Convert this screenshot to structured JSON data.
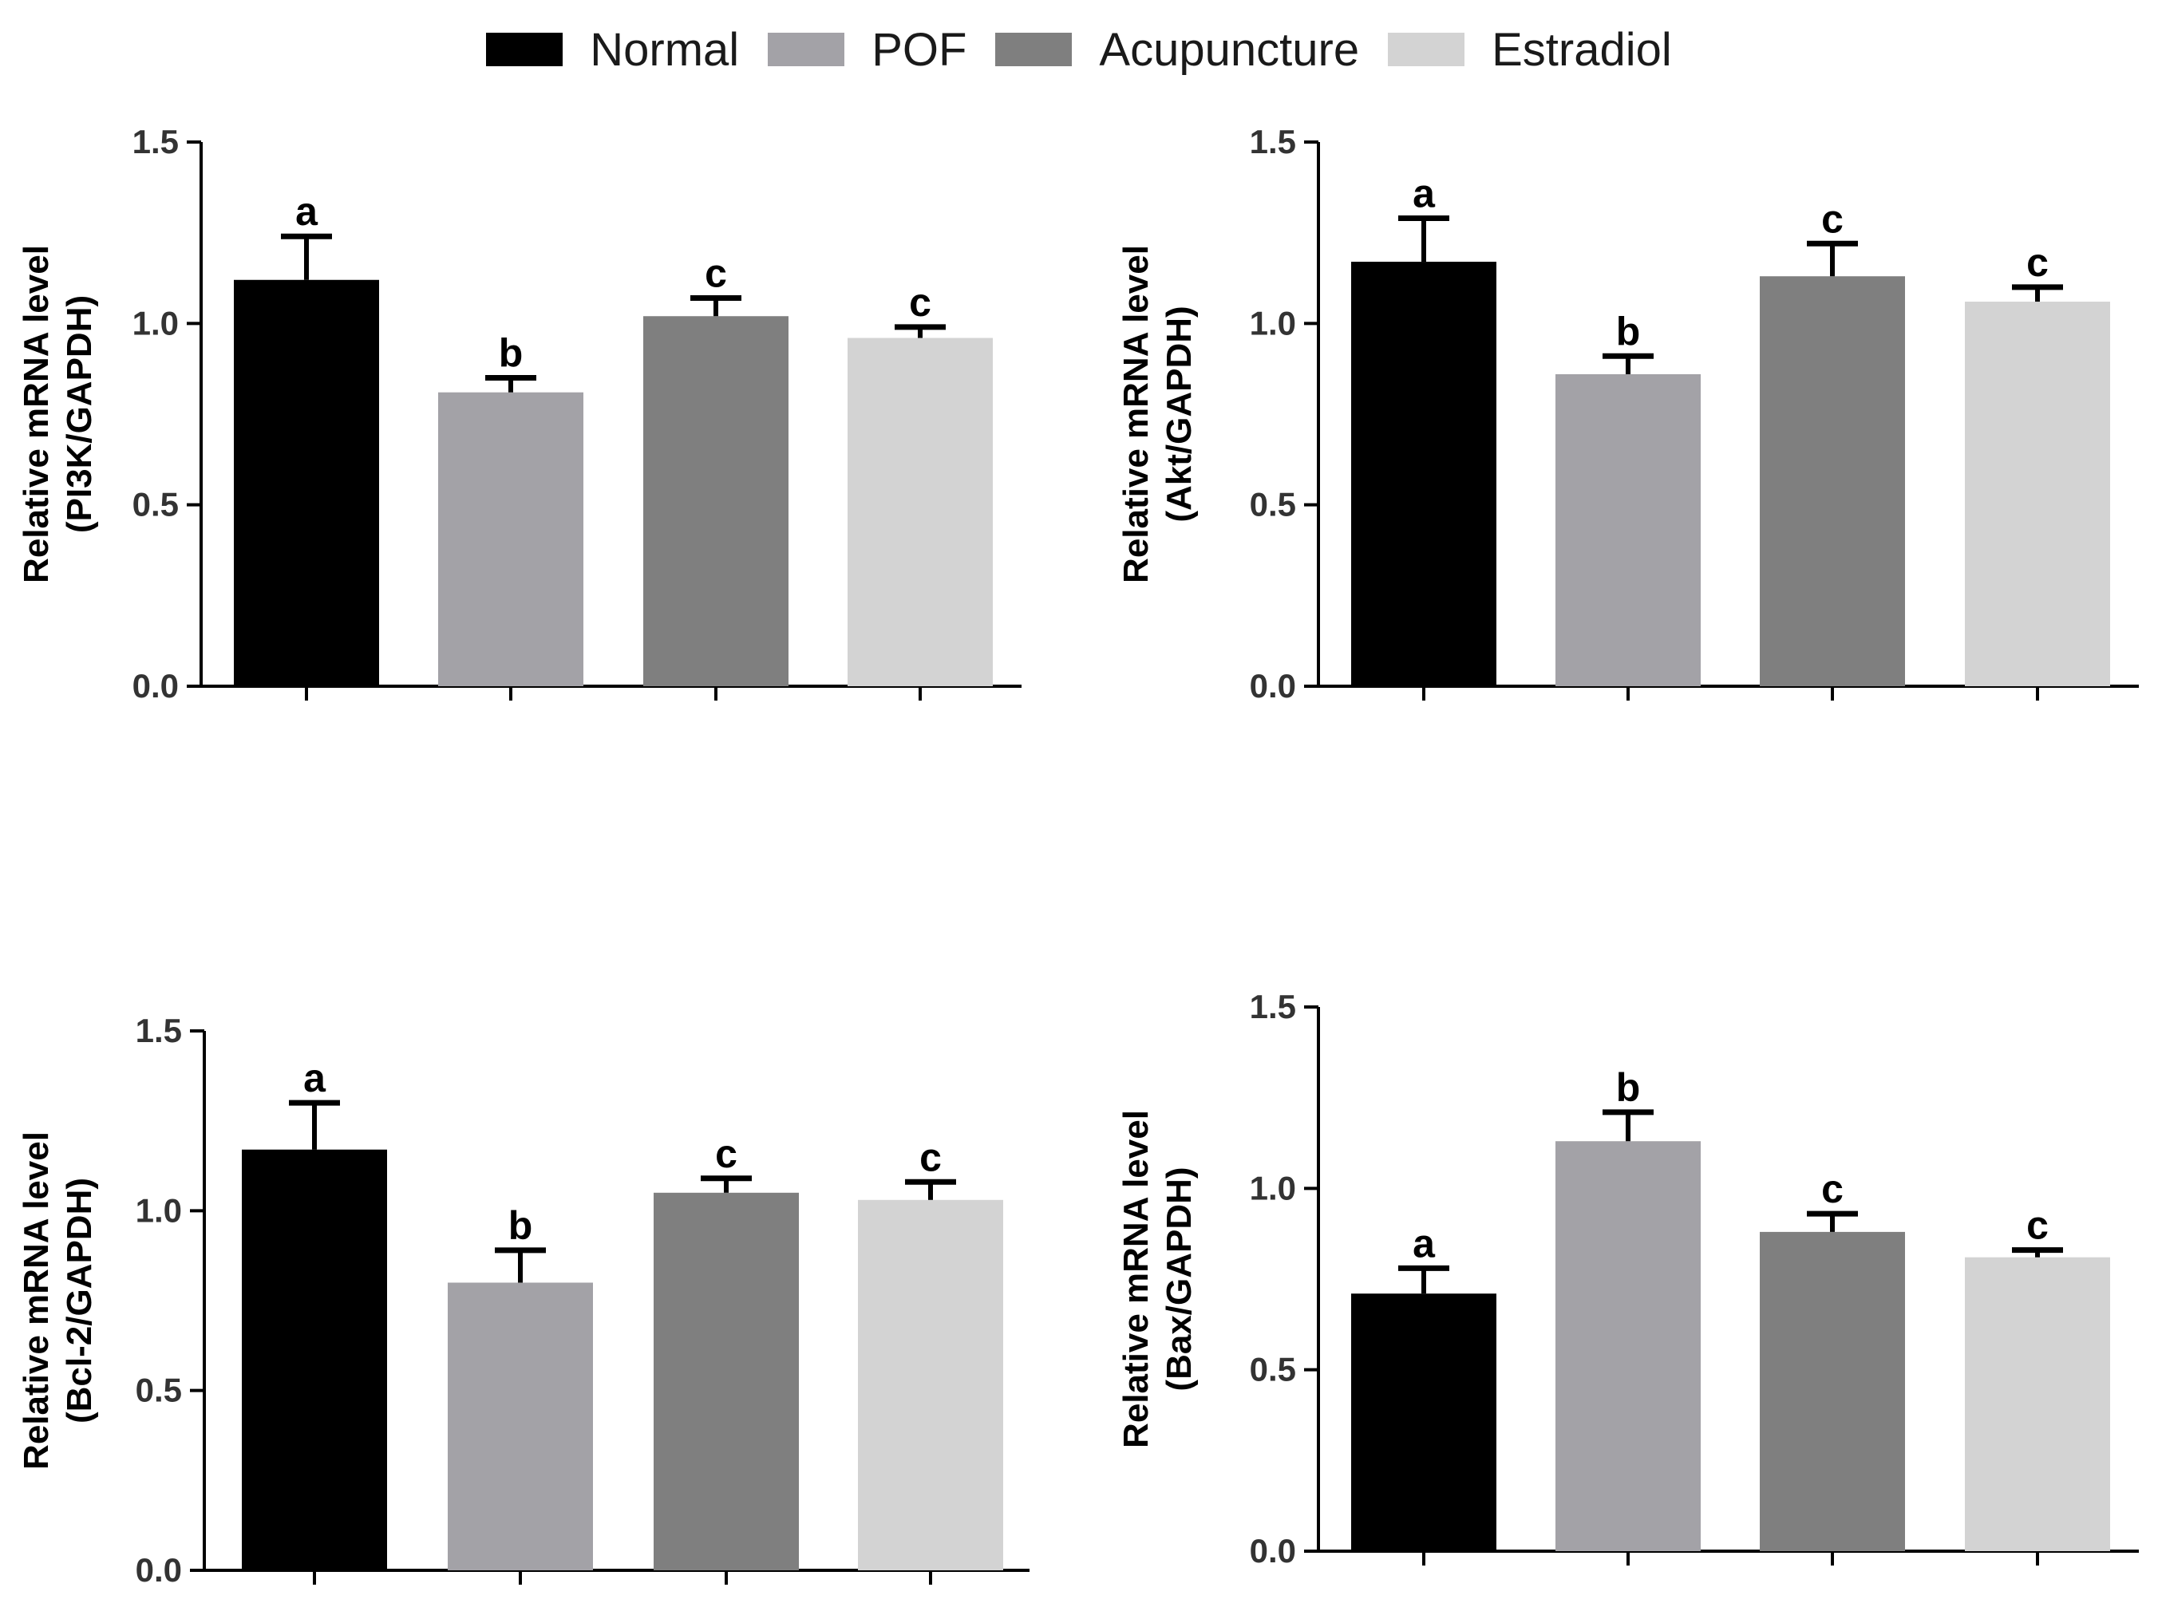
{
  "legend": [
    {
      "label": "Normal",
      "color": "#000000"
    },
    {
      "label": "POF",
      "color": "#a3a2a7"
    },
    {
      "label": "Acupuncture",
      "color": "#7f7f7f"
    },
    {
      "label": "Estradiol",
      "color": "#d3d3d3"
    }
  ],
  "chart_data": [
    {
      "type": "bar",
      "title": "",
      "xlabel": "",
      "ylabel": "Relative mRNA level",
      "ylabel2": "(PI3K/GAPDH)",
      "ylim": [
        0,
        1.5
      ],
      "yticks": [
        "0.0",
        "0.5",
        "1.0",
        "1.5"
      ],
      "categories": [
        "Normal",
        "POF",
        "Acupuncture",
        "Estradiol"
      ],
      "values": [
        1.12,
        0.81,
        1.02,
        0.96
      ],
      "errors": [
        0.12,
        0.04,
        0.05,
        0.03
      ],
      "significance": [
        "a",
        "b",
        "c",
        "c"
      ]
    },
    {
      "type": "bar",
      "title": "",
      "xlabel": "",
      "ylabel": "Relative mRNA level",
      "ylabel2": "(Akt/GAPDH)",
      "ylim": [
        0,
        1.5
      ],
      "yticks": [
        "0.0",
        "0.5",
        "1.0",
        "1.5"
      ],
      "categories": [
        "Normal",
        "POF",
        "Acupuncture",
        "Estradiol"
      ],
      "values": [
        1.17,
        0.86,
        1.13,
        1.06
      ],
      "errors": [
        0.12,
        0.05,
        0.09,
        0.04
      ],
      "significance": [
        "a",
        "b",
        "c",
        "c"
      ]
    },
    {
      "type": "bar",
      "title": "",
      "xlabel": "",
      "ylabel": "Relative mRNA level",
      "ylabel2": "(Bcl-2/GAPDH)",
      "ylim": [
        0,
        1.5
      ],
      "yticks": [
        "0.0",
        "0.5",
        "1.0",
        "1.5"
      ],
      "categories": [
        "Normal",
        "POF",
        "Acupuncture",
        "Estradiol"
      ],
      "values": [
        1.17,
        0.8,
        1.05,
        1.03
      ],
      "errors": [
        0.13,
        0.09,
        0.04,
        0.05
      ],
      "significance": [
        "a",
        "b",
        "c",
        "c"
      ]
    },
    {
      "type": "bar",
      "title": "",
      "xlabel": "",
      "ylabel": "Relative mRNA level",
      "ylabel2": "(Bax/GAPDH)",
      "ylim": [
        0,
        1.5
      ],
      "yticks": [
        "0.0",
        "0.5",
        "1.0",
        "1.5"
      ],
      "categories": [
        "Normal",
        "POF",
        "Acupuncture",
        "Estradiol"
      ],
      "values": [
        0.71,
        1.13,
        0.88,
        0.81
      ],
      "errors": [
        0.07,
        0.08,
        0.05,
        0.02
      ],
      "significance": [
        "a",
        "b",
        "c",
        "c"
      ]
    }
  ]
}
